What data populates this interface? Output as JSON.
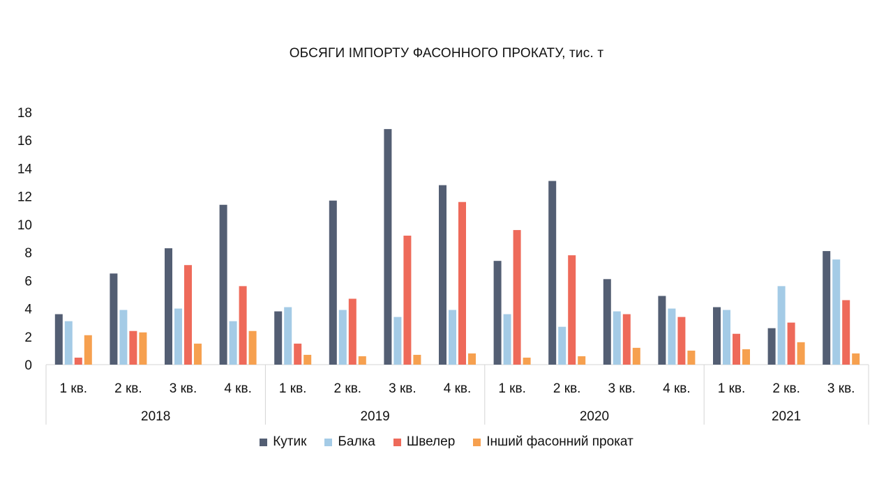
{
  "chart_data": {
    "type": "bar",
    "title": "ОБСЯГИ ІМПОРТУ ФАСОННОГО ПРОКАТУ, тис. т",
    "xlabel": "",
    "ylabel": "",
    "ylim": [
      0,
      18
    ],
    "yticks": [
      "0",
      "2",
      "4",
      "6",
      "8",
      "10",
      "12",
      "14",
      "16",
      "18"
    ],
    "grid": false,
    "legend_position": "bottom",
    "categories": [
      "1 кв.",
      "2 кв.",
      "3 кв.",
      "4 кв.",
      "1 кв.",
      "2 кв.",
      "3 кв.",
      "4 кв.",
      "1 кв.",
      "2 кв.",
      "3 кв.",
      "4 кв.",
      "1 кв.",
      "2 кв.",
      "3 кв."
    ],
    "groups": [
      {
        "label": "2018",
        "count": 4
      },
      {
        "label": "2019",
        "count": 4
      },
      {
        "label": "2020",
        "count": 4
      },
      {
        "label": "2021",
        "count": 3
      }
    ],
    "series": [
      {
        "name": "Кутик",
        "color": "#535e73",
        "values": [
          3.6,
          6.5,
          8.3,
          11.4,
          3.8,
          11.7,
          16.8,
          12.8,
          7.4,
          13.1,
          6.1,
          4.9,
          4.1,
          2.6,
          8.1
        ]
      },
      {
        "name": "Балка",
        "color": "#a4cbe6",
        "values": [
          3.1,
          3.9,
          4.0,
          3.1,
          4.1,
          3.9,
          3.4,
          3.9,
          3.6,
          2.7,
          3.8,
          4.0,
          3.9,
          5.6,
          7.5
        ]
      },
      {
        "name": "Швелер",
        "color": "#ee6a5a",
        "values": [
          0.5,
          2.4,
          7.1,
          5.6,
          1.5,
          4.7,
          9.2,
          11.6,
          9.6,
          7.8,
          3.6,
          3.4,
          2.2,
          3.0,
          4.6
        ]
      },
      {
        "name": "Інший фасонний прокат",
        "color": "#f6a04f",
        "values": [
          2.1,
          2.3,
          1.5,
          2.4,
          0.7,
          0.6,
          0.7,
          0.8,
          0.5,
          0.6,
          1.2,
          1.0,
          1.1,
          1.6,
          0.8
        ]
      }
    ]
  }
}
